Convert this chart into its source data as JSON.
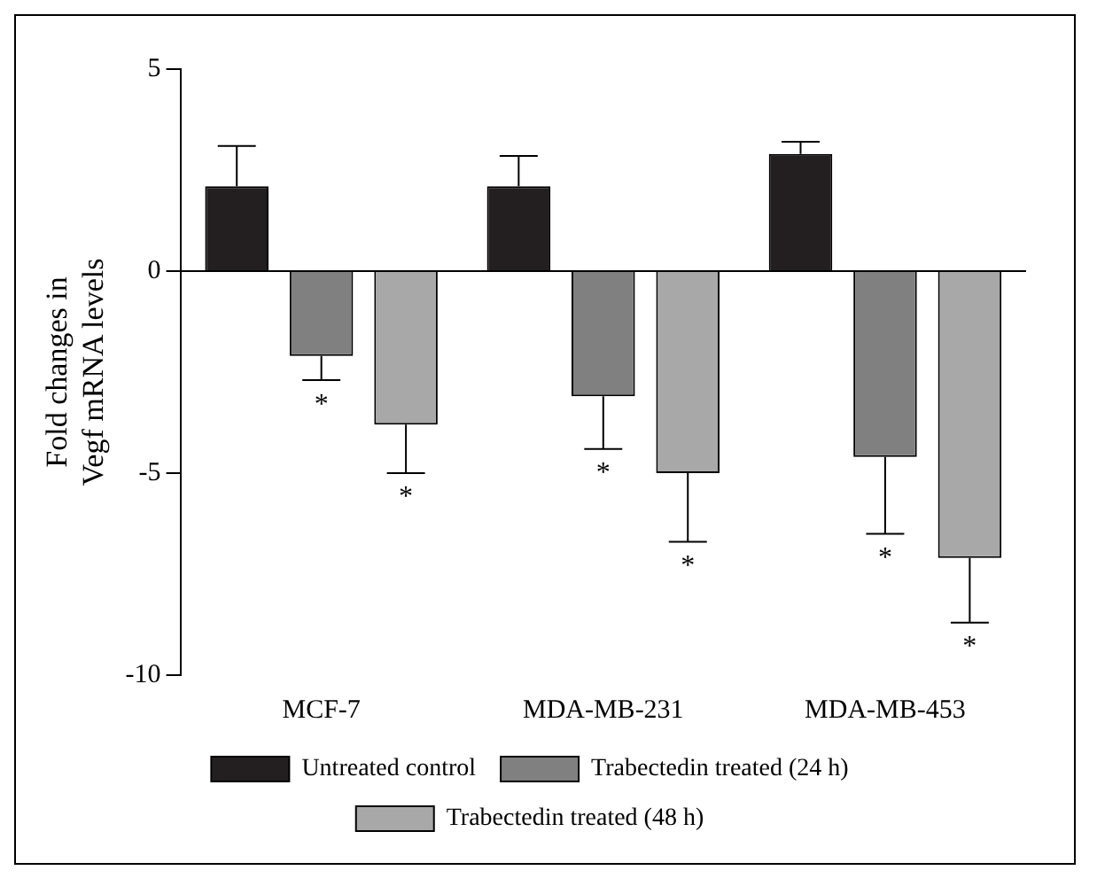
{
  "chart_data": {
    "type": "bar",
    "ylabel": "Fold changes in\nVegf mRNA levels",
    "categories": [
      "MCF-7",
      "MDA-MB-231",
      "MDA-MB-453"
    ],
    "series": [
      {
        "name": "Untreated control",
        "color": "#231f20",
        "values": [
          2.1,
          2.1,
          2.9
        ],
        "errors": [
          [
            2.1,
            3.1
          ],
          [
            2.1,
            2.85
          ],
          [
            2.9,
            3.2
          ]
        ]
      },
      {
        "name": "Trabectedin treated (24 h)",
        "color": "#808080",
        "values": [
          -2.1,
          -3.1,
          -4.6
        ],
        "errors": [
          [
            -2.7,
            -2.1
          ],
          [
            -4.4,
            -3.1
          ],
          [
            -6.5,
            -4.6
          ]
        ]
      },
      {
        "name": "Trabectedin treated (48 h)",
        "color": "#a8a8a8",
        "values": [
          -3.8,
          -5.0,
          -7.1
        ],
        "errors": [
          [
            -5.0,
            -3.8
          ],
          [
            -6.7,
            -5.0
          ],
          [
            -8.7,
            -7.1
          ]
        ]
      }
    ],
    "ylim": [
      -10,
      5
    ],
    "yticks": [
      5,
      0,
      -5,
      -10
    ],
    "grid": false,
    "legend": "bottom",
    "ref_lines": [
      {
        "axis": "y",
        "value": 0
      }
    ],
    "annotations": [
      "*",
      "*",
      "*",
      "*",
      "*",
      "*"
    ]
  }
}
